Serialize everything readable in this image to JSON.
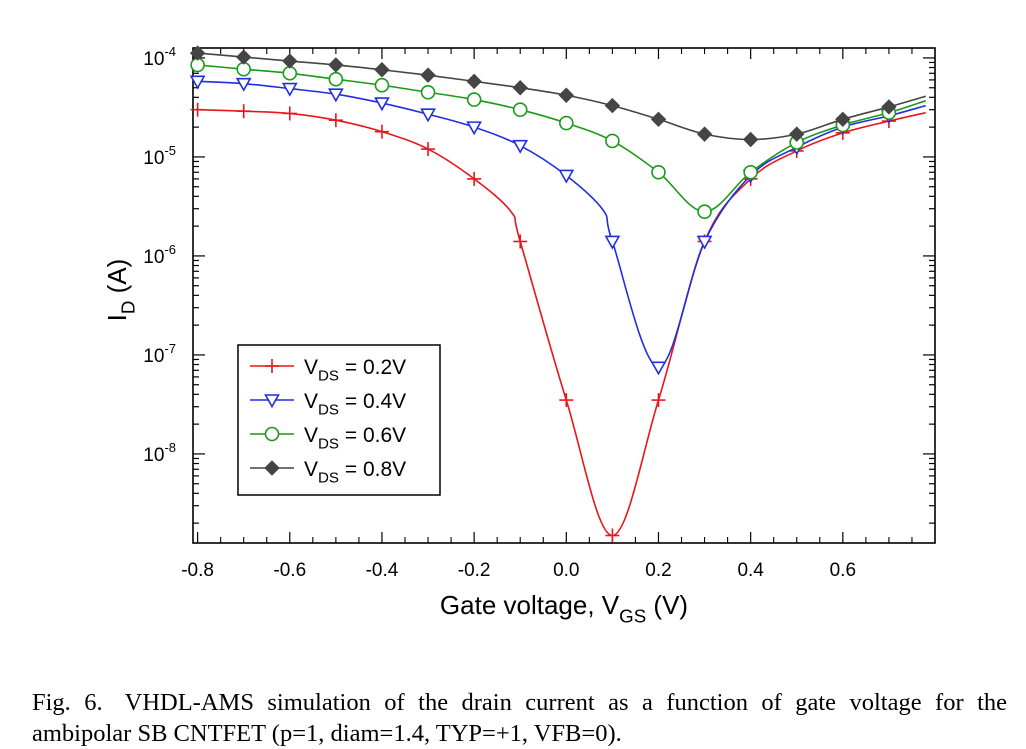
{
  "chart_data": {
    "type": "line",
    "xlabel": "Gate voltage, V",
    "xlabel_sub": "GS",
    "xlabel_unit": " (V)",
    "ylabel": "I",
    "ylabel_sub": "D",
    "ylabel_unit": " (A)",
    "y_scale": "log",
    "xlim": [
      -0.81,
      0.8
    ],
    "ylim": [
      1.26e-09,
      0.000126
    ],
    "x_ticks": [
      "-0.8",
      "-0.6",
      "-0.4",
      "-0.2",
      "0.0",
      "0.2",
      "0.4",
      "0.6"
    ],
    "y_ticks": [
      {
        "base": "10",
        "exp": "-8"
      },
      {
        "base": "10",
        "exp": "-7"
      },
      {
        "base": "10",
        "exp": "-6"
      },
      {
        "base": "10",
        "exp": "-5"
      },
      {
        "base": "10",
        "exp": "-4"
      }
    ],
    "grid": false,
    "legend_position": "lower-left",
    "series": [
      {
        "name": "V",
        "name_sub": "DS",
        "name_value": " = 0.2V",
        "marker": "plus",
        "color": "#e8161b",
        "x": [
          -0.8,
          -0.7,
          -0.6,
          -0.5,
          -0.4,
          -0.3,
          -0.2,
          -0.12,
          -0.1,
          0.0,
          0.1,
          0.2,
          0.3,
          0.4,
          0.5,
          0.6,
          0.7,
          0.78
        ],
        "y": [
          3e-05,
          2.9e-05,
          2.75e-05,
          2.35e-05,
          1.8e-05,
          1.2e-05,
          6e-06,
          2.8e-06,
          1.4e-06,
          3.5e-08,
          1.5e-09,
          3.5e-08,
          1.4e-06,
          6e-06,
          1.15e-05,
          1.75e-05,
          2.3e-05,
          2.8e-05
        ],
        "marker_x": [
          -0.8,
          -0.7,
          -0.6,
          -0.5,
          -0.4,
          -0.3,
          -0.2,
          -0.1,
          0.0,
          0.1,
          0.2,
          0.3,
          0.4,
          0.5,
          0.6,
          0.7
        ],
        "marker_y": [
          3e-05,
          2.9e-05,
          2.75e-05,
          2.35e-05,
          1.8e-05,
          1.2e-05,
          6e-06,
          1.4e-06,
          3.5e-08,
          1.5e-09,
          3.5e-08,
          1.4e-06,
          6e-06,
          1.15e-05,
          1.75e-05,
          2.3e-05
        ]
      },
      {
        "name": "V",
        "name_sub": "DS",
        "name_value": " = 0.4V",
        "marker": "triangle-down",
        "color": "#1f2fe0",
        "x": [
          -0.8,
          -0.7,
          -0.6,
          -0.5,
          -0.4,
          -0.3,
          -0.2,
          -0.1,
          0.0,
          0.08,
          0.1,
          0.2,
          0.3,
          0.4,
          0.5,
          0.6,
          0.7,
          0.78
        ],
        "y": [
          5.8e-05,
          5.5e-05,
          4.9e-05,
          4.3e-05,
          3.5e-05,
          2.7e-05,
          2e-05,
          1.3e-05,
          6.5e-06,
          2.9e-06,
          1.4e-06,
          7.5e-08,
          1.4e-06,
          6.5e-06,
          1.25e-05,
          2e-05,
          2.6e-05,
          3.3e-05
        ],
        "marker_x": [
          -0.8,
          -0.7,
          -0.6,
          -0.5,
          -0.4,
          -0.3,
          -0.2,
          -0.1,
          0.0,
          0.1,
          0.2,
          0.3,
          0.4,
          0.5,
          0.6,
          0.7
        ],
        "marker_y": [
          5.8e-05,
          5.5e-05,
          4.9e-05,
          4.3e-05,
          3.5e-05,
          2.7e-05,
          2e-05,
          1.3e-05,
          6.5e-06,
          1.4e-06,
          7.5e-08,
          1.4e-06,
          6.5e-06,
          1.25e-05,
          2e-05,
          2.6e-05
        ]
      },
      {
        "name": "V",
        "name_sub": "DS",
        "name_value": " = 0.6V",
        "marker": "circle",
        "color": "#1a9a1a",
        "x": [
          -0.8,
          -0.7,
          -0.6,
          -0.5,
          -0.4,
          -0.3,
          -0.2,
          -0.1,
          0.0,
          0.1,
          0.2,
          0.3,
          0.4,
          0.5,
          0.6,
          0.7,
          0.78
        ],
        "y": [
          8.5e-05,
          7.7e-05,
          7e-05,
          6.1e-05,
          5.3e-05,
          4.5e-05,
          3.8e-05,
          3e-05,
          2.2e-05,
          1.45e-05,
          7e-06,
          2.8e-06,
          7e-06,
          1.4e-05,
          2.1e-05,
          2.8e-05,
          3.7e-05
        ],
        "marker_x": [
          -0.8,
          -0.7,
          -0.6,
          -0.5,
          -0.4,
          -0.3,
          -0.2,
          -0.1,
          0.0,
          0.1,
          0.2,
          0.3,
          0.4,
          0.5,
          0.6,
          0.7
        ],
        "marker_y": [
          8.5e-05,
          7.7e-05,
          7e-05,
          6.1e-05,
          5.3e-05,
          4.5e-05,
          3.8e-05,
          3e-05,
          2.2e-05,
          1.45e-05,
          7e-06,
          2.8e-06,
          7e-06,
          1.4e-05,
          2.1e-05,
          2.8e-05
        ]
      },
      {
        "name": "V",
        "name_sub": "DS",
        "name_value": " = 0.8V",
        "marker": "diamond",
        "color": "#454545",
        "x": [
          -0.8,
          -0.7,
          -0.6,
          -0.5,
          -0.4,
          -0.3,
          -0.2,
          -0.1,
          0.0,
          0.1,
          0.2,
          0.3,
          0.4,
          0.5,
          0.6,
          0.7,
          0.78
        ],
        "y": [
          0.000112,
          0.000102,
          9.3e-05,
          8.5e-05,
          7.6e-05,
          6.7e-05,
          5.8e-05,
          5e-05,
          4.2e-05,
          3.3e-05,
          2.4e-05,
          1.7e-05,
          1.5e-05,
          1.7e-05,
          2.4e-05,
          3.2e-05,
          4.1e-05
        ],
        "marker_x": [
          -0.8,
          -0.7,
          -0.6,
          -0.5,
          -0.4,
          -0.3,
          -0.2,
          -0.1,
          0.0,
          0.1,
          0.2,
          0.3,
          0.4,
          0.5,
          0.6,
          0.7
        ],
        "marker_y": [
          0.000112,
          0.000102,
          9.3e-05,
          8.5e-05,
          7.6e-05,
          6.7e-05,
          5.8e-05,
          5e-05,
          4.2e-05,
          3.3e-05,
          2.4e-05,
          1.7e-05,
          1.5e-05,
          1.7e-05,
          2.4e-05,
          3.2e-05
        ]
      }
    ]
  },
  "caption": {
    "label": "Fig. 6.",
    "text": "VHDL-AMS simulation of the drain current as a function of gate voltage for the ambipolar SB CNTFET (p=1, diam=1.4, TYP=+1, VFB=0)."
  }
}
